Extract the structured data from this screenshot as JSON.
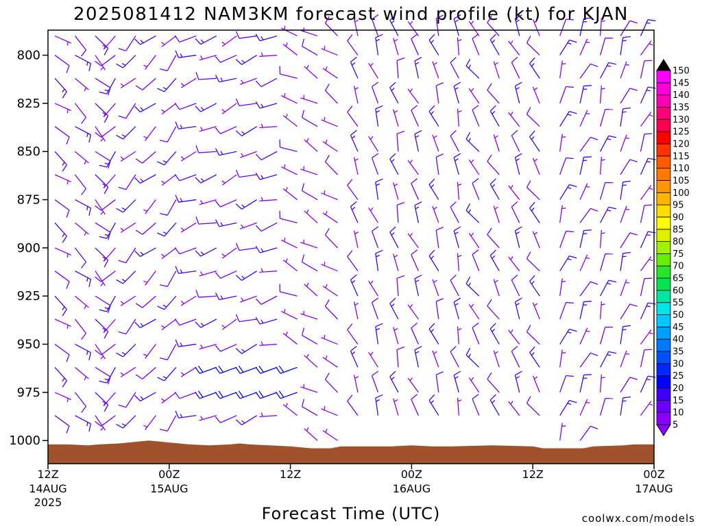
{
  "colors": {
    "terrain": "#a0522d",
    "barb_default": "#8a2be2",
    "credit": "#e05050",
    "colorbar": [
      "#8a00ff",
      "#6a00ff",
      "#3c00ff",
      "#0000ff",
      "#0028ff",
      "#0050ff",
      "#0078ff",
      "#00a0ff",
      "#00c8ff",
      "#00e6e6",
      "#00e6a0",
      "#00e650",
      "#28e628",
      "#64f000",
      "#a0f000",
      "#dcf000",
      "#ffff00",
      "#ffdc00",
      "#ffb400",
      "#ff9600",
      "#ff7800",
      "#ff5a00",
      "#ff3200",
      "#ff0000",
      "#ff0050",
      "#ff0078",
      "#ff00b4",
      "#ff00dc",
      "#ff00ff"
    ]
  },
  "chart_data": {
    "type": "wind_barbs",
    "title": "2025081412 NAM3KM forecast wind profile (kt) for KJAN",
    "xlabel": "Forecast Time (UTC)",
    "credit": "coolwx.com/models",
    "y_axis": {
      "label": "",
      "inverted": true,
      "range": [
        1012,
        787
      ],
      "ticks": [
        {
          "value": 800,
          "label": "800"
        },
        {
          "value": 825,
          "label": "825"
        },
        {
          "value": 850,
          "label": "850"
        },
        {
          "value": 875,
          "label": "875"
        },
        {
          "value": 900,
          "label": "900"
        },
        {
          "value": 925,
          "label": "925"
        },
        {
          "value": 950,
          "label": "950"
        },
        {
          "value": 975,
          "label": "975"
        },
        {
          "value": 1000,
          "label": "1000"
        }
      ]
    },
    "x_axis": {
      "range_hours": [
        0,
        60
      ],
      "ticks": [
        {
          "hour": 0,
          "label": "12Z",
          "sub1": "14AUG",
          "sub2": "2025"
        },
        {
          "hour": 12,
          "label": "00Z",
          "sub1": "15AUG",
          "sub2": ""
        },
        {
          "hour": 24,
          "label": "12Z",
          "sub1": "",
          "sub2": ""
        },
        {
          "hour": 36,
          "label": "00Z",
          "sub1": "16AUG",
          "sub2": ""
        },
        {
          "hour": 48,
          "label": "12Z",
          "sub1": "",
          "sub2": ""
        },
        {
          "hour": 60,
          "label": "00Z",
          "sub1": "17AUG",
          "sub2": ""
        }
      ]
    },
    "colorbar": {
      "min": 5,
      "max": 150,
      "step": 5,
      "labels": [
        "150",
        "145",
        "140",
        "135",
        "130",
        "125",
        "120",
        "115",
        "110",
        "105",
        "100",
        "95",
        "90",
        "85",
        "80",
        "75",
        "70",
        "65",
        "60",
        "55",
        "50",
        "45",
        "40",
        "35",
        "30",
        "25",
        "20",
        "15",
        "10",
        "5"
      ]
    },
    "surface_pressure": [
      {
        "hour": 0,
        "p": 1002
      },
      {
        "hour": 2,
        "p": 1002
      },
      {
        "hour": 4,
        "p": 1002.5
      },
      {
        "hour": 5,
        "p": 1002
      },
      {
        "hour": 7,
        "p": 1001.5
      },
      {
        "hour": 8,
        "p": 1001
      },
      {
        "hour": 9,
        "p": 1000.5
      },
      {
        "hour": 10,
        "p": 1000
      },
      {
        "hour": 11,
        "p": 1000.5
      },
      {
        "hour": 12,
        "p": 1001
      },
      {
        "hour": 14,
        "p": 1002
      },
      {
        "hour": 16,
        "p": 1002.5
      },
      {
        "hour": 18,
        "p": 1002
      },
      {
        "hour": 19,
        "p": 1001.5
      },
      {
        "hour": 20,
        "p": 1002
      },
      {
        "hour": 22,
        "p": 1002.5
      },
      {
        "hour": 24,
        "p": 1003
      },
      {
        "hour": 26,
        "p": 1004
      },
      {
        "hour": 28,
        "p": 1004
      },
      {
        "hour": 29,
        "p": 1003
      },
      {
        "hour": 34,
        "p": 1003
      },
      {
        "hour": 36,
        "p": 1002.5
      },
      {
        "hour": 38,
        "p": 1003
      },
      {
        "hour": 40,
        "p": 1003
      },
      {
        "hour": 44,
        "p": 1002.5
      },
      {
        "hour": 48,
        "p": 1003
      },
      {
        "hour": 49,
        "p": 1004
      },
      {
        "hour": 53,
        "p": 1004
      },
      {
        "hour": 54,
        "p": 1003
      },
      {
        "hour": 57,
        "p": 1002.5
      },
      {
        "hour": 58,
        "p": 1002
      },
      {
        "hour": 60,
        "p": 1002
      }
    ],
    "barbs": {
      "hours": [
        0,
        2,
        4,
        6,
        8,
        10,
        12,
        14,
        16,
        18,
        20,
        22,
        24,
        26,
        28,
        30,
        32,
        34,
        36,
        38,
        40,
        42,
        44,
        46,
        48,
        50,
        52,
        54,
        56,
        58,
        60
      ],
      "levels": [
        790,
        800,
        812,
        825,
        837,
        850,
        862,
        875,
        887,
        900,
        912,
        925,
        937,
        950,
        962,
        975,
        987,
        1000
      ],
      "regimes": [
        {
          "from_hour": 0,
          "to_hour": 6,
          "direction_deg": 130,
          "speed_kt": 10
        },
        {
          "from_hour": 6,
          "to_hour": 14,
          "direction_deg": 225,
          "speed_kt": 10
        },
        {
          "from_hour": 14,
          "to_hour": 24,
          "direction_deg": 250,
          "speed_kt": 10
        },
        {
          "from_hour": 24,
          "to_hour": 30,
          "direction_deg": 300,
          "speed_kt": 5
        },
        {
          "from_hour": 30,
          "to_hour": 42,
          "direction_deg": 340,
          "speed_kt": 10
        },
        {
          "from_hour": 42,
          "to_hour": 50,
          "direction_deg": 330,
          "speed_kt": 10
        },
        {
          "from_hour": 50,
          "to_hour": 60,
          "direction_deg": 20,
          "speed_kt": 10
        }
      ],
      "low_level_jet": {
        "from_hour": 16,
        "to_hour": 24,
        "p_min": 955,
        "p_max": 985,
        "direction_deg": 250,
        "speed_kt": 20
      }
    }
  }
}
